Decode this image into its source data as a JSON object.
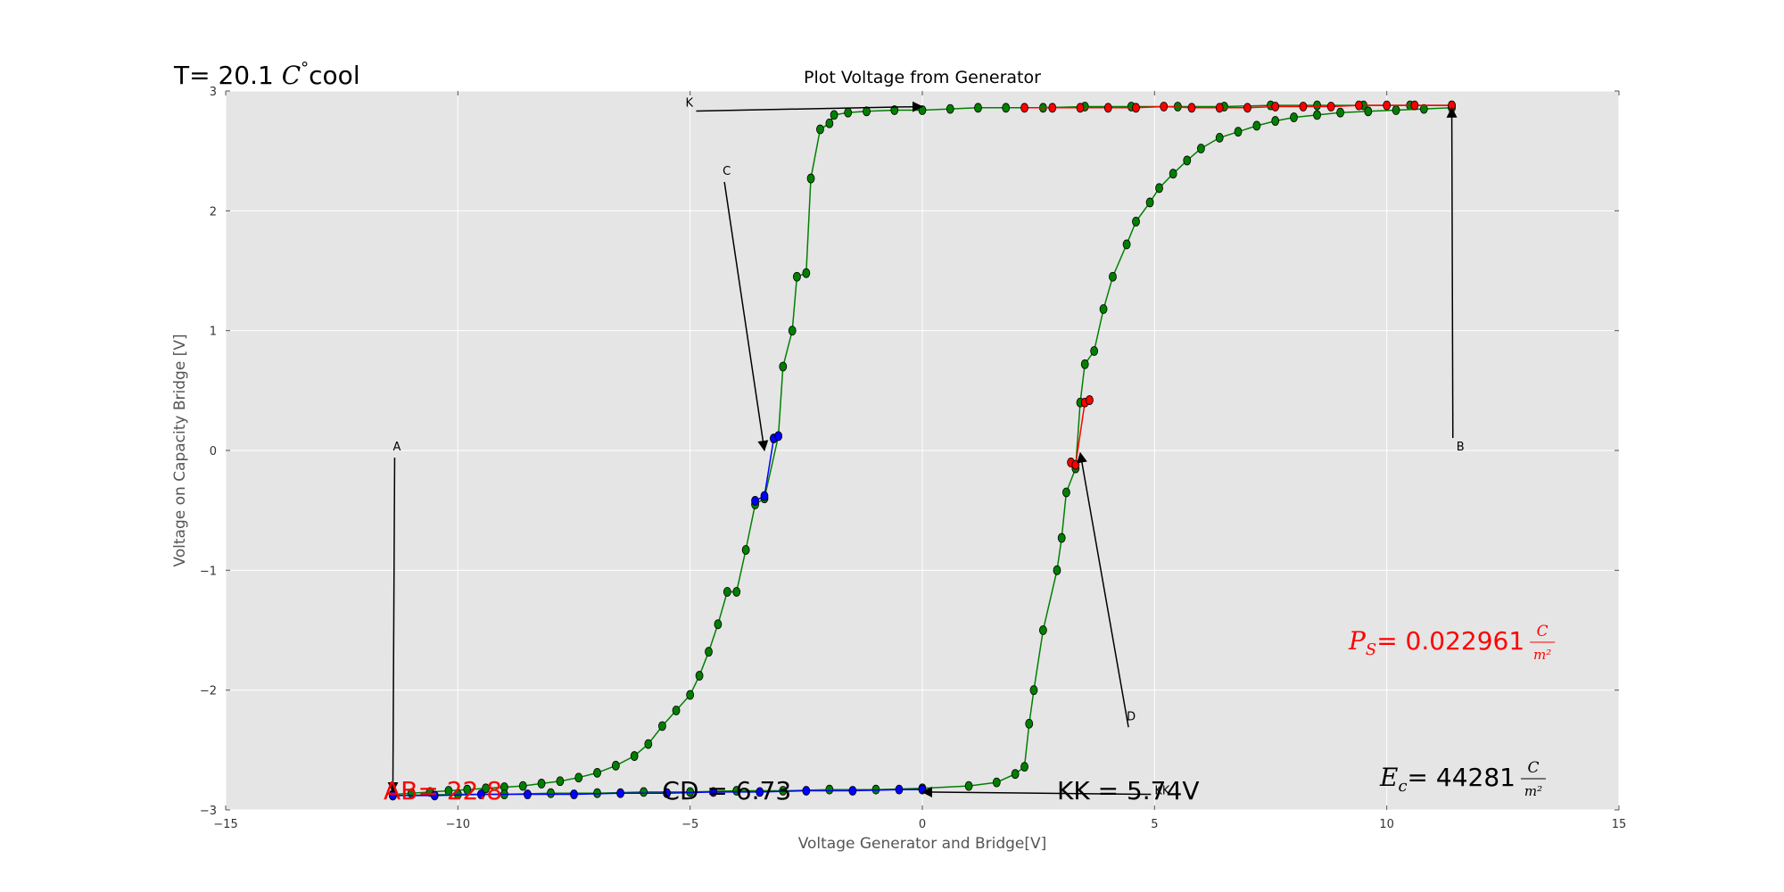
{
  "chart_data": {
    "type": "scatter",
    "title": "Plot Voltage from Generator",
    "xlabel": "Voltage Generator and Bridge[V]",
    "ylabel": "Voltage on Capacity Bridge [V]",
    "xlim": [
      -15,
      15
    ],
    "ylim": [
      -3,
      3
    ],
    "xticks": [
      -15,
      -10,
      -5,
      0,
      5,
      10,
      15
    ],
    "yticks": [
      -3,
      -2,
      -1,
      0,
      1,
      2,
      3
    ],
    "grid": true,
    "background": "#e5e5e5",
    "corner_text": {
      "prefix": "T= 20.1 ",
      "unit": "C",
      "degree": "°",
      "suffix": "cool"
    },
    "series": [
      {
        "color": "#008000",
        "values": [
          [
            -11.4,
            -2.87
          ],
          [
            -11,
            -2.86
          ],
          [
            -10.6,
            -2.85
          ],
          [
            -10.2,
            -2.84
          ],
          [
            -9.8,
            -2.83
          ],
          [
            -9.4,
            -2.82
          ],
          [
            -9,
            -2.81
          ],
          [
            -8.6,
            -2.8
          ],
          [
            -8.2,
            -2.78
          ],
          [
            -7.8,
            -2.76
          ],
          [
            -7.4,
            -2.73
          ],
          [
            -7,
            -2.69
          ],
          [
            -6.6,
            -2.63
          ],
          [
            -6.2,
            -2.55
          ],
          [
            -5.9,
            -2.45
          ],
          [
            -5.6,
            -2.3
          ],
          [
            -5.3,
            -2.17
          ],
          [
            -5,
            -2.04
          ],
          [
            -4.8,
            -1.88
          ],
          [
            -4.6,
            -1.68
          ],
          [
            -4.4,
            -1.45
          ],
          [
            -4.2,
            -1.18
          ],
          [
            -4,
            -1.18
          ],
          [
            -3.8,
            -0.83
          ],
          [
            -3.6,
            -0.45
          ],
          [
            -3.4,
            -0.4
          ],
          [
            -3.1,
            0.12
          ],
          [
            -3,
            0.7
          ],
          [
            -2.8,
            1.0
          ],
          [
            -2.7,
            1.45
          ],
          [
            -2.5,
            1.48
          ],
          [
            -2.4,
            2.27
          ],
          [
            -2.2,
            2.68
          ],
          [
            -2,
            2.73
          ],
          [
            -1.9,
            2.8
          ],
          [
            -1.6,
            2.82
          ],
          [
            -1.2,
            2.83
          ],
          [
            -0.6,
            2.84
          ],
          [
            0,
            2.84
          ],
          [
            0.6,
            2.85
          ],
          [
            1.2,
            2.86
          ],
          [
            1.8,
            2.86
          ],
          [
            2.6,
            2.86
          ],
          [
            3.5,
            2.87
          ],
          [
            4.5,
            2.87
          ],
          [
            5.5,
            2.87
          ],
          [
            6.5,
            2.87
          ],
          [
            7.5,
            2.88
          ],
          [
            8.5,
            2.88
          ],
          [
            9.5,
            2.88
          ],
          [
            10.5,
            2.88
          ],
          [
            11.4,
            2.88
          ]
        ]
      },
      {
        "color": "#008000",
        "values": [
          [
            11.4,
            2.86
          ],
          [
            10.8,
            2.85
          ],
          [
            10.2,
            2.84
          ],
          [
            9.6,
            2.83
          ],
          [
            9,
            2.82
          ],
          [
            8.5,
            2.8
          ],
          [
            8,
            2.78
          ],
          [
            7.6,
            2.75
          ],
          [
            7.2,
            2.71
          ],
          [
            6.8,
            2.66
          ],
          [
            6.4,
            2.61
          ],
          [
            6,
            2.52
          ],
          [
            5.7,
            2.42
          ],
          [
            5.4,
            2.31
          ],
          [
            5.1,
            2.19
          ],
          [
            4.9,
            2.07
          ],
          [
            4.6,
            1.91
          ],
          [
            4.4,
            1.72
          ],
          [
            4.1,
            1.45
          ],
          [
            3.9,
            1.18
          ],
          [
            3.7,
            0.83
          ],
          [
            3.5,
            0.72
          ],
          [
            3.4,
            0.4
          ],
          [
            3.3,
            -0.15
          ],
          [
            3.1,
            -0.35
          ],
          [
            3,
            -0.73
          ],
          [
            2.9,
            -1.0
          ],
          [
            2.6,
            -1.5
          ],
          [
            2.4,
            -2.0
          ],
          [
            2.3,
            -2.28
          ],
          [
            2.2,
            -2.64
          ],
          [
            2,
            -2.7
          ],
          [
            1.6,
            -2.77
          ],
          [
            1,
            -2.8
          ],
          [
            0,
            -2.82
          ],
          [
            -1,
            -2.83
          ],
          [
            -2,
            -2.83
          ],
          [
            -3,
            -2.84
          ],
          [
            -4,
            -2.84
          ],
          [
            -5,
            -2.85
          ],
          [
            -6,
            -2.85
          ],
          [
            -7,
            -2.86
          ],
          [
            -8,
            -2.86
          ],
          [
            -9,
            -2.87
          ],
          [
            -10,
            -2.87
          ],
          [
            -11.4,
            -2.88
          ]
        ]
      },
      {
        "color": "#0000ff",
        "values": [
          [
            -11.4,
            -2.88
          ],
          [
            -10.5,
            -2.88
          ],
          [
            -9.5,
            -2.87
          ],
          [
            -8.5,
            -2.87
          ],
          [
            -7.5,
            -2.87
          ],
          [
            -6.5,
            -2.86
          ],
          [
            -5.5,
            -2.86
          ],
          [
            -4.5,
            -2.85
          ],
          [
            -3.5,
            -2.85
          ],
          [
            -2.5,
            -2.84
          ],
          [
            -1.5,
            -2.84
          ],
          [
            -0.5,
            -2.83
          ],
          [
            0,
            -2.83
          ]
        ]
      },
      {
        "color": "#0000ff",
        "values": [
          [
            -3.6,
            -0.42
          ],
          [
            -3.4,
            -0.38
          ],
          [
            -3.2,
            0.1
          ],
          [
            -3.1,
            0.12
          ]
        ]
      },
      {
        "color": "#ff0000",
        "values": [
          [
            2.2,
            2.86
          ],
          [
            2.8,
            2.86
          ],
          [
            3.4,
            2.86
          ],
          [
            4,
            2.86
          ],
          [
            4.6,
            2.86
          ],
          [
            5.2,
            2.87
          ],
          [
            5.8,
            2.86
          ],
          [
            6.4,
            2.86
          ],
          [
            7,
            2.86
          ],
          [
            7.6,
            2.87
          ],
          [
            8.2,
            2.87
          ],
          [
            8.8,
            2.87
          ],
          [
            9.4,
            2.88
          ],
          [
            10,
            2.88
          ],
          [
            10.6,
            2.88
          ],
          [
            11.4,
            2.88
          ]
        ]
      },
      {
        "color": "#ff0000",
        "values": [
          [
            3.2,
            -0.1
          ],
          [
            3.3,
            -0.12
          ],
          [
            3.5,
            0.4
          ],
          [
            3.6,
            0.42
          ]
        ]
      }
    ],
    "annotations": [
      {
        "label": "A",
        "text_xy": [
          -11.4,
          0.0
        ],
        "arrow_to": [
          -11.4,
          -2.85
        ]
      },
      {
        "label": "B",
        "text_xy": [
          11.5,
          0.0
        ],
        "arrow_to": [
          11.4,
          2.86
        ]
      },
      {
        "label": "C",
        "text_xy": [
          -4.3,
          2.3
        ],
        "arrow_to": [
          -3.4,
          0.0
        ]
      },
      {
        "label": "D",
        "text_xy": [
          4.4,
          -2.25
        ],
        "arrow_to": [
          3.4,
          -0.02
        ]
      },
      {
        "label": "K",
        "text_xy": [
          -5.1,
          2.87
        ],
        "arrow_to": [
          0.0,
          2.87
        ]
      },
      {
        "label": "KK",
        "text_xy": [
          5.0,
          -2.87
        ],
        "arrow_to": [
          0.0,
          -2.85
        ]
      }
    ],
    "value_labels": [
      {
        "name": "ab-label",
        "text": "AB= 22.8",
        "color": "#ff0000",
        "xy": [
          -11.6,
          -2.91
        ]
      },
      {
        "name": "cd-label",
        "text": "CD = 6.73",
        "color": "#000000",
        "xy": [
          -5.6,
          -2.91
        ]
      },
      {
        "name": "kk-label",
        "text": "KK = 5.74V",
        "color": "#000000",
        "xy": [
          2.9,
          -2.91
        ]
      }
    ],
    "ps_label": {
      "symbol": "P",
      "sub": "S",
      "value": "= 0.022961",
      "num": "C",
      "den": "m²",
      "color": "#ff0000"
    },
    "ec_label": {
      "symbol": "E",
      "sub": "c",
      "value": "= 44281",
      "num": "C",
      "den": "m²",
      "color": "#000000"
    }
  }
}
